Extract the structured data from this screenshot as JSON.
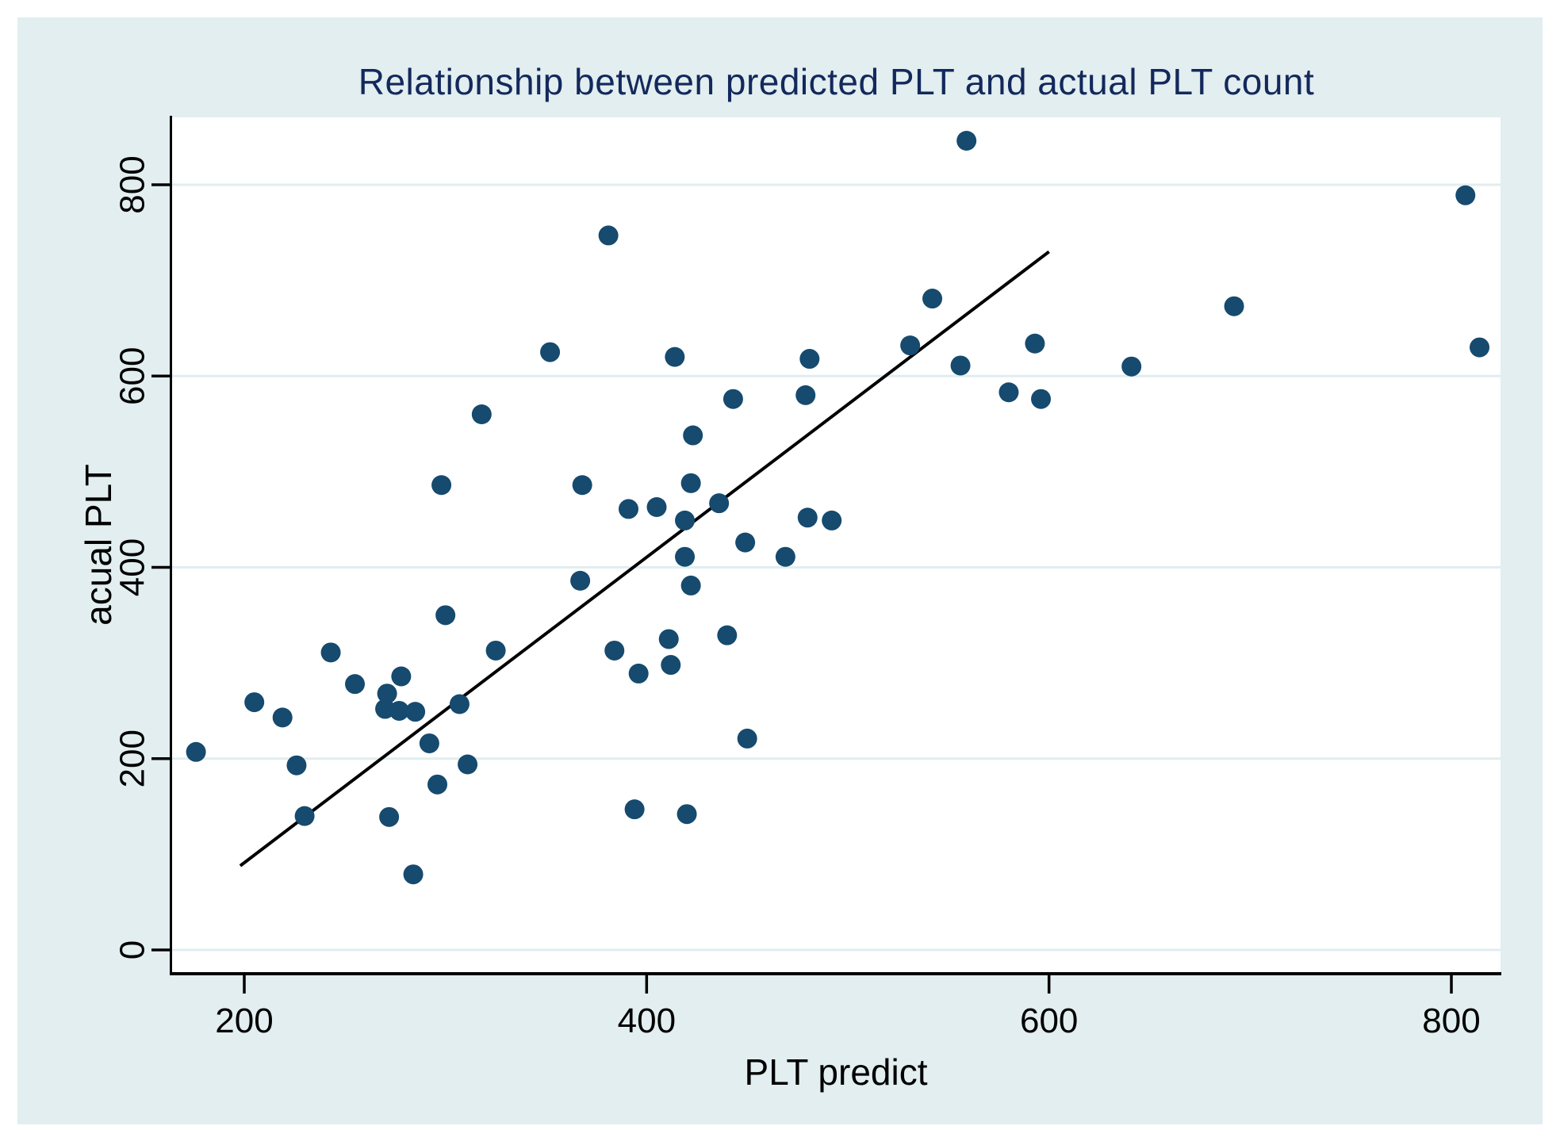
{
  "figure": {
    "title": "Relationship between predicted PLT and actual PLT count"
  },
  "colors": {
    "page_margin": "#ffffff",
    "figure_background": "#e2eeef",
    "plot_background": "#ffffff",
    "gridline": "#e0eef0",
    "point_fill": "#164a6e",
    "trend_line": "#000000",
    "axis_line": "#000000",
    "title_text": "#13285c",
    "axis_text": "#000000"
  },
  "chart_data": {
    "type": "scatter",
    "title": "Relationship between predicted PLT and actual PLT count",
    "xlabel": "PLT predict",
    "ylabel": "acual PLT",
    "x_ticks": [
      200,
      400,
      600,
      800
    ],
    "y_ticks": [
      0,
      200,
      400,
      600,
      800
    ],
    "xlim": [
      164,
      825
    ],
    "ylim": [
      -25,
      871
    ],
    "grid": "horizontal-only",
    "legend": "none",
    "marker": "filled-circle",
    "points": [
      [
        381,
        747
      ],
      [
        352,
        625
      ],
      [
        318,
        560
      ],
      [
        298,
        486
      ],
      [
        368,
        486
      ],
      [
        559,
        846
      ],
      [
        542,
        681
      ],
      [
        531,
        632
      ],
      [
        414,
        620
      ],
      [
        481,
        618
      ],
      [
        556,
        611
      ],
      [
        593,
        634
      ],
      [
        443,
        576
      ],
      [
        479,
        580
      ],
      [
        580,
        583
      ],
      [
        596,
        576
      ],
      [
        423,
        538
      ],
      [
        422,
        488
      ],
      [
        391,
        461
      ],
      [
        405,
        463
      ],
      [
        436,
        467
      ],
      [
        419,
        449
      ],
      [
        419,
        411
      ],
      [
        449,
        426
      ],
      [
        480,
        452
      ],
      [
        492,
        449
      ],
      [
        469,
        411
      ],
      [
        422,
        381
      ],
      [
        807,
        789
      ],
      [
        692,
        673
      ],
      [
        814,
        630
      ],
      [
        641,
        610
      ],
      [
        367,
        386
      ],
      [
        300,
        350
      ],
      [
        243,
        311
      ],
      [
        325,
        313
      ],
      [
        384,
        313
      ],
      [
        255,
        278
      ],
      [
        278,
        286
      ],
      [
        271,
        268
      ],
      [
        270,
        252
      ],
      [
        277,
        250
      ],
      [
        285,
        249
      ],
      [
        307,
        257
      ],
      [
        292,
        216
      ],
      [
        205,
        259
      ],
      [
        219,
        243
      ],
      [
        176,
        207
      ],
      [
        226,
        193
      ],
      [
        311,
        194
      ],
      [
        296,
        173
      ],
      [
        230,
        140
      ],
      [
        272,
        139
      ],
      [
        284,
        79
      ],
      [
        411,
        325
      ],
      [
        440,
        329
      ],
      [
        412,
        298
      ],
      [
        396,
        289
      ],
      [
        450,
        221
      ],
      [
        394,
        147
      ],
      [
        420,
        142
      ]
    ],
    "trend_line": {
      "x1": 198,
      "y1": 88,
      "x2": 600,
      "y2": 730
    }
  }
}
